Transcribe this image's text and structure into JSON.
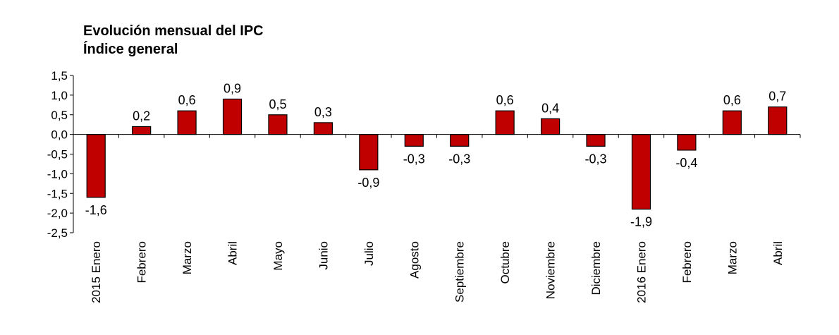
{
  "chart_data": {
    "type": "bar",
    "title": "Evolución mensual del IPC",
    "subtitle": "Índice general",
    "xlabel": "",
    "ylabel": "",
    "ylim": [
      -2.5,
      1.5
    ],
    "yticks": [
      1.5,
      1.0,
      0.5,
      0.0,
      -0.5,
      -1.0,
      -1.5,
      -2.0,
      -2.5
    ],
    "ytick_labels": [
      "1,5",
      "1,0",
      "0,5",
      "0,0",
      "-0,5",
      "-1,0",
      "-1,5",
      "-2,0",
      "-2,5"
    ],
    "categories": [
      "2015 Enero",
      "Febrero",
      "Marzo",
      "Abril",
      "Mayo",
      "Junio",
      "Julio",
      "Agosto",
      "Septiembre",
      "Octubre",
      "Noviembre",
      "Diciembre",
      "2016 Enero",
      "Febrero",
      "Marzo",
      "Abril"
    ],
    "values": [
      -1.6,
      0.2,
      0.6,
      0.9,
      0.5,
      0.3,
      -0.9,
      -0.3,
      -0.3,
      0.6,
      0.4,
      -0.3,
      -1.9,
      -0.4,
      0.6,
      0.7
    ],
    "value_labels": [
      "-1,6",
      "0,2",
      "0,6",
      "0,9",
      "0,5",
      "0,3",
      "-0,9",
      "-0,3",
      "-0,3",
      "0,6",
      "0,4",
      "-0,3",
      "-1,9",
      "-0,4",
      "0,6",
      "0,7"
    ],
    "bar_color": "#c00000",
    "grid": false,
    "legend": "none"
  }
}
